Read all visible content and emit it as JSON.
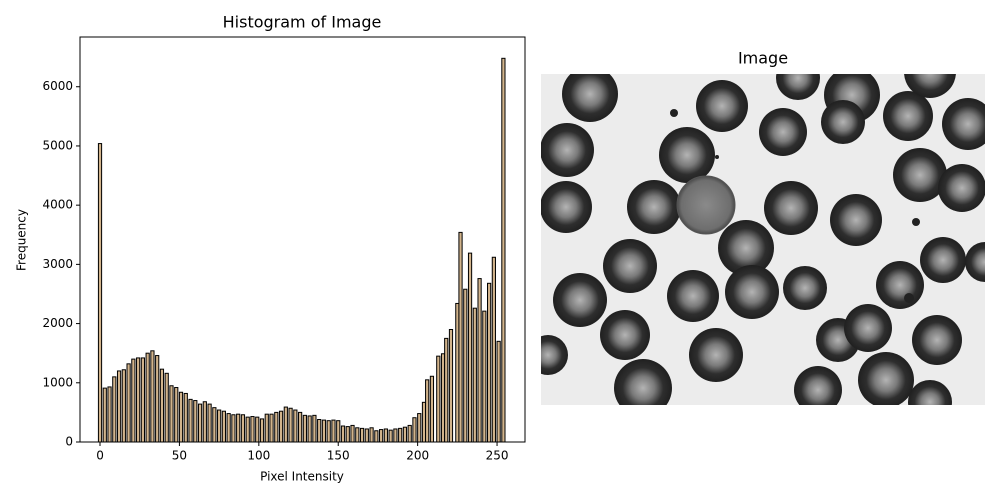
{
  "chart_data": [
    {
      "type": "bar",
      "title": "Histogram of Image",
      "xlabel": "Pixel Intensity",
      "ylabel": "Frequency",
      "x": [
        0,
        3,
        6,
        9,
        12,
        15,
        18,
        21,
        24,
        27,
        30,
        33,
        36,
        39,
        42,
        45,
        48,
        51,
        54,
        57,
        60,
        63,
        66,
        69,
        72,
        75,
        78,
        81,
        84,
        87,
        90,
        93,
        96,
        99,
        102,
        105,
        108,
        111,
        114,
        117,
        120,
        123,
        126,
        129,
        132,
        135,
        138,
        141,
        144,
        147,
        150,
        153,
        156,
        159,
        162,
        165,
        168,
        171,
        174,
        177,
        180,
        183,
        186,
        189,
        192,
        195,
        198,
        201,
        204,
        206,
        209,
        213,
        216,
        218,
        221,
        225,
        227,
        230,
        233,
        236,
        239,
        242,
        245,
        248,
        251,
        254
      ],
      "values": [
        5040,
        910,
        930,
        1100,
        1200,
        1220,
        1320,
        1400,
        1420,
        1420,
        1500,
        1540,
        1460,
        1230,
        1160,
        950,
        920,
        840,
        820,
        720,
        700,
        640,
        680,
        640,
        580,
        540,
        520,
        480,
        460,
        470,
        460,
        420,
        430,
        420,
        390,
        470,
        470,
        500,
        520,
        590,
        570,
        540,
        500,
        450,
        440,
        450,
        380,
        370,
        360,
        370,
        360,
        270,
        260,
        280,
        240,
        230,
        220,
        240,
        190,
        210,
        220,
        200,
        220,
        230,
        250,
        280,
        410,
        480,
        670,
        1050,
        1110,
        1450,
        1490,
        1750,
        1900,
        2340,
        3540,
        2580,
        3190,
        2260,
        2760,
        2210,
        2680,
        3120,
        1700,
        6480
      ],
      "color": "#d2b48c",
      "edgecolor": "#000000",
      "xlim": [
        -12.6,
        267.6
      ],
      "ylim": [
        0,
        6840
      ],
      "xticks": [
        0,
        50,
        100,
        150,
        200,
        250
      ],
      "yticks": [
        0,
        1000,
        2000,
        3000,
        4000,
        5000,
        6000
      ]
    },
    {
      "type": "image",
      "title": "Image"
    }
  ]
}
